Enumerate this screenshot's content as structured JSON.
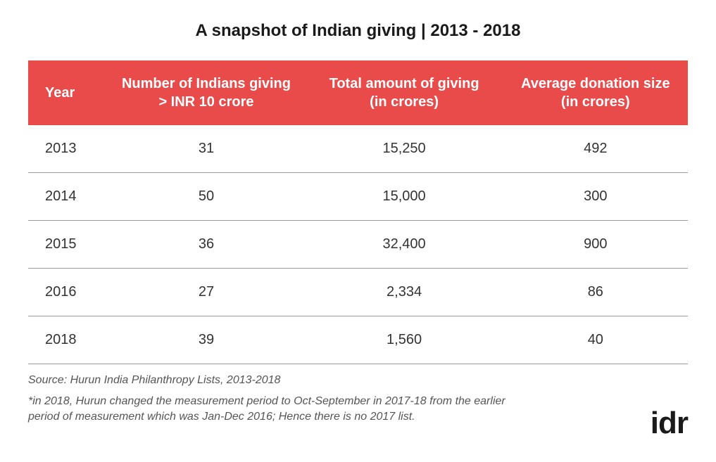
{
  "title": "A snapshot of Indian giving  |  2013 - 2018",
  "table": {
    "header_bg": "#e94b4b",
    "header_fg": "#ffffff",
    "row_border": "#9a9a9a",
    "cell_fg": "#333333",
    "columns": [
      "Year",
      "Number of Indians giving\n> INR 10 crore",
      "Total amount of giving\n(in crores)",
      "Average donation size\n(in crores)"
    ],
    "rows": [
      [
        "2013",
        "31",
        "15,250",
        "492"
      ],
      [
        "2014",
        "50",
        "15,000",
        "300"
      ],
      [
        "2015",
        "36",
        "32,400",
        "900"
      ],
      [
        "2016",
        "27",
        "2,334",
        "86"
      ],
      [
        "2018",
        "39",
        "1,560",
        "40"
      ]
    ],
    "header_fontsize": 20,
    "cell_fontsize": 20,
    "col_widths_pct": [
      12,
      30,
      30,
      28
    ]
  },
  "source": "Source: Hurun India Philanthropy Lists, 2013-2018",
  "footnote": "*in 2018, Hurun changed the measurement period to Oct-September in 2017-18 from the earlier period of measurement which was Jan-Dec 2016; Hence there is no 2017 list.",
  "logo": "idr",
  "styles": {
    "page_bg": "#ffffff",
    "title_fontsize": 24,
    "title_color": "#1a1a1a",
    "source_fontsize": 16,
    "source_color": "#555555",
    "logo_fontsize": 44,
    "logo_color": "#1a1a1a"
  }
}
